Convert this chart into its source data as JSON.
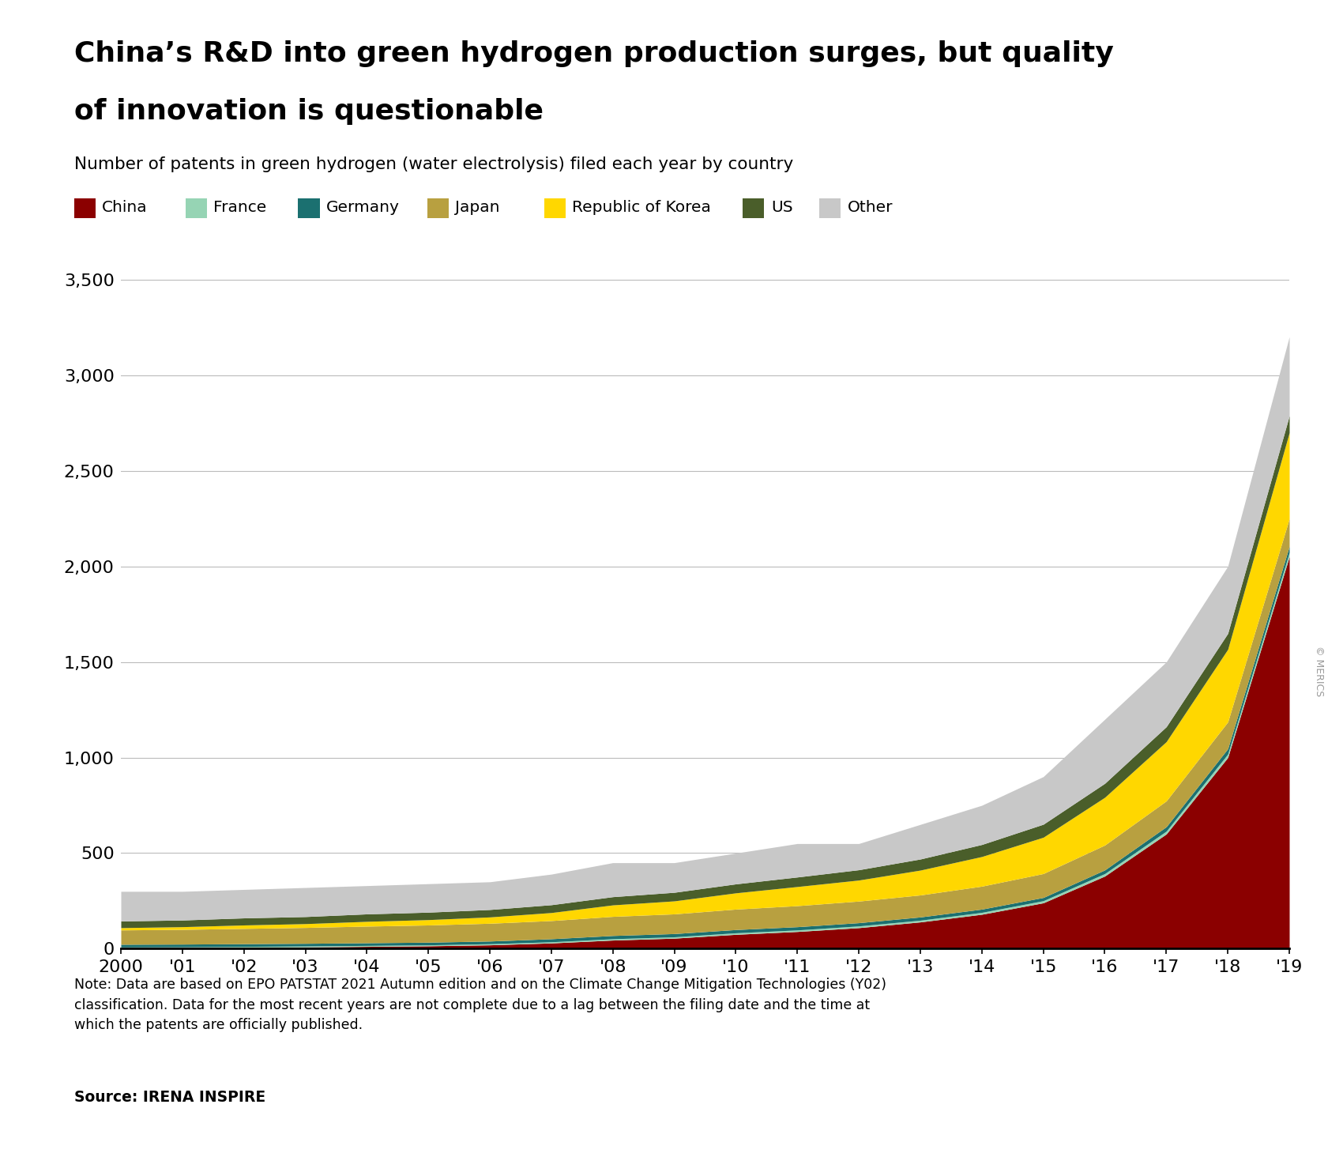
{
  "title_line1": "China’s R&D into green hydrogen production surges, but quality",
  "title_line2": "of innovation is questionable",
  "subtitle": "Number of patents in green hydrogen (water electrolysis) filed each year by country",
  "note": "Note: Data are based on EPO PATSTAT 2021 Autumn edition and on the Climate Change Mitigation Technologies (Y02)\nclassification. Data for the most recent years are not complete due to a lag between the filing date and the time at\nwhich the patents are officially published.",
  "source": "Source: IRENA INSPIRE",
  "years": [
    2000,
    2001,
    2002,
    2003,
    2004,
    2005,
    2006,
    2007,
    2008,
    2009,
    2010,
    2011,
    2012,
    2013,
    2014,
    2015,
    2016,
    2017,
    2018,
    2019
  ],
  "series": {
    "China": [
      5,
      6,
      7,
      9,
      12,
      15,
      20,
      30,
      45,
      55,
      75,
      90,
      110,
      140,
      180,
      240,
      380,
      600,
      1000,
      2050
    ],
    "France": [
      4,
      4,
      5,
      5,
      5,
      5,
      6,
      6,
      7,
      7,
      8,
      8,
      9,
      9,
      10,
      11,
      13,
      15,
      18,
      22
    ],
    "Germany": [
      14,
      14,
      14,
      14,
      14,
      14,
      14,
      16,
      17,
      17,
      17,
      17,
      17,
      17,
      17,
      17,
      19,
      23,
      28,
      32
    ],
    "Japan": [
      75,
      77,
      80,
      83,
      87,
      90,
      93,
      95,
      100,
      103,
      107,
      110,
      113,
      115,
      120,
      125,
      130,
      135,
      140,
      145
    ],
    "Republic of Korea": [
      12,
      14,
      18,
      20,
      25,
      28,
      33,
      42,
      60,
      68,
      85,
      100,
      110,
      130,
      155,
      190,
      250,
      310,
      380,
      450
    ],
    "US": [
      35,
      35,
      37,
      37,
      39,
      39,
      39,
      41,
      43,
      45,
      47,
      50,
      54,
      58,
      63,
      68,
      73,
      78,
      83,
      88
    ],
    "Other": [
      155,
      150,
      149,
      152,
      148,
      149,
      145,
      160,
      178,
      155,
      161,
      175,
      137,
      181,
      205,
      249,
      335,
      339,
      351,
      413
    ]
  },
  "colors": {
    "China": "#8B0000",
    "France": "#96D4B4",
    "Germany": "#1B7070",
    "Japan": "#B8A040",
    "Republic of Korea": "#FFD700",
    "US": "#4A5E2A",
    "Other": "#C8C8C8"
  },
  "legend_order": [
    "China",
    "France",
    "Germany",
    "Japan",
    "Republic of Korea",
    "US",
    "Other"
  ],
  "ylim": [
    0,
    3600
  ],
  "yticks": [
    0,
    500,
    1000,
    1500,
    2000,
    2500,
    3000,
    3500
  ],
  "background_color": "#FFFFFF",
  "grid_color": "#BBBBBB",
  "xlabels": [
    "2000",
    "'01",
    "'02",
    "'03",
    "'04",
    "'05",
    "'06",
    "'07",
    "'08",
    "'09",
    "'10",
    "'11",
    "'12",
    "'13",
    "'14",
    "'15",
    "'16",
    "'17",
    "'18",
    "'19"
  ]
}
